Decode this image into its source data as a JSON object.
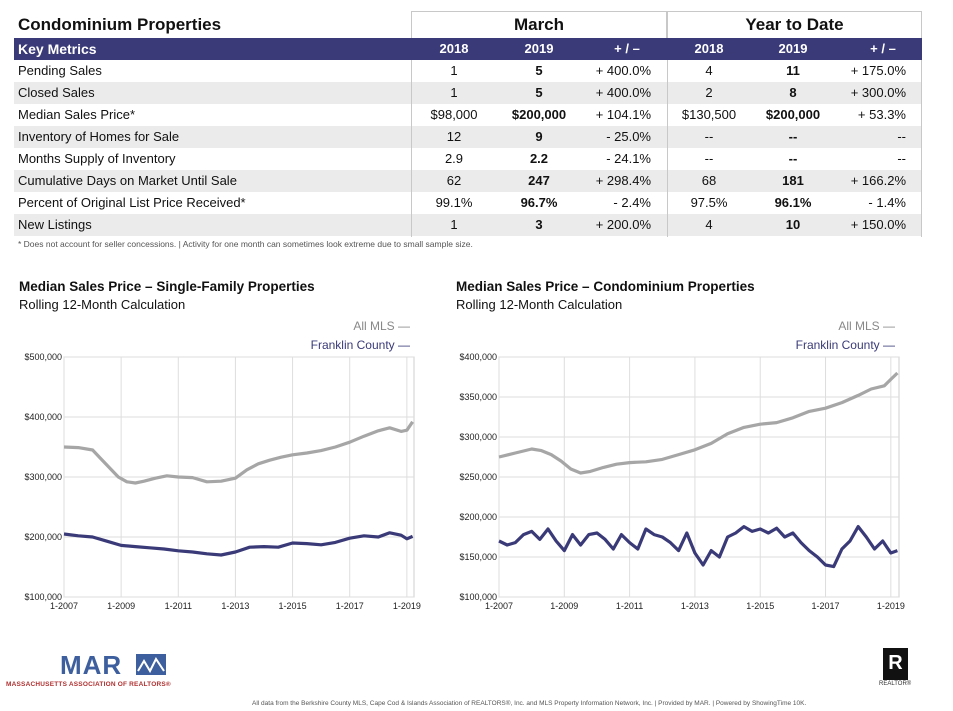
{
  "table": {
    "title": "Condominium Properties",
    "groups": [
      "March",
      "Year to Date"
    ],
    "header_label": "Key Metrics",
    "col_headers": [
      "2018",
      "2019",
      "+ / –",
      "2018",
      "2019",
      "+ / –"
    ],
    "rows": [
      {
        "label": "Pending Sales",
        "m18": "1",
        "m19": "5",
        "mchg": "+ 400.0%",
        "y18": "4",
        "y19": "11",
        "ychg": "+ 175.0%"
      },
      {
        "label": "Closed Sales",
        "m18": "1",
        "m19": "5",
        "mchg": "+ 400.0%",
        "y18": "2",
        "y19": "8",
        "ychg": "+ 300.0%"
      },
      {
        "label": "Median Sales Price*",
        "m18": "$98,000",
        "m19": "$200,000",
        "mchg": "+ 104.1%",
        "y18": "$130,500",
        "y19": "$200,000",
        "ychg": "+ 53.3%"
      },
      {
        "label": "Inventory of Homes for Sale",
        "m18": "12",
        "m19": "9",
        "mchg": "- 25.0%",
        "y18": "--",
        "y19": "--",
        "ychg": "--"
      },
      {
        "label": "Months Supply of Inventory",
        "m18": "2.9",
        "m19": "2.2",
        "mchg": "- 24.1%",
        "y18": "--",
        "y19": "--",
        "ychg": "--"
      },
      {
        "label": "Cumulative Days on Market Until Sale",
        "m18": "62",
        "m19": "247",
        "mchg": "+ 298.4%",
        "y18": "68",
        "y19": "181",
        "ychg": "+ 166.2%"
      },
      {
        "label": "Percent of Original List Price Received*",
        "m18": "99.1%",
        "m19": "96.7%",
        "mchg": "- 2.4%",
        "y18": "97.5%",
        "y19": "96.1%",
        "ychg": "- 1.4%"
      },
      {
        "label": "New Listings",
        "m18": "1",
        "m19": "3",
        "mchg": "+ 200.0%",
        "y18": "4",
        "y19": "10",
        "ychg": "+ 150.0%"
      }
    ],
    "footnote": "* Does not account for seller concessions.  |  Activity for one month can sometimes look extreme due to small sample size."
  },
  "colors": {
    "header_bg": "#3a3a78",
    "all_mls": "#a6a6a6",
    "county": "#3a3a78"
  },
  "chart_data": [
    {
      "type": "line",
      "title": "Median Sales Price – Single-Family Properties",
      "subtitle": "Rolling 12-Month Calculation",
      "legend": [
        "All MLS  —",
        "Franklin County  —"
      ],
      "ylim": [
        100000,
        500000
      ],
      "yticks": [
        100000,
        200000,
        300000,
        400000,
        500000
      ],
      "ytick_labels": [
        "$100,000",
        "$200,000",
        "$300,000",
        "$400,000",
        "$500,000"
      ],
      "xlim": [
        2007.0,
        2019.25
      ],
      "xticks": [
        2007,
        2009,
        2011,
        2013,
        2015,
        2017,
        2019
      ],
      "xtick_labels": [
        "1-2007",
        "1-2009",
        "1-2011",
        "1-2013",
        "1-2015",
        "1-2017",
        "1-2019"
      ],
      "series": [
        {
          "name": "All MLS",
          "x": [
            2007.0,
            2007.5,
            2008.0,
            2008.3,
            2008.6,
            2008.9,
            2009.2,
            2009.5,
            2009.8,
            2010.2,
            2010.6,
            2011.0,
            2011.5,
            2012.0,
            2012.5,
            2013.0,
            2013.4,
            2013.8,
            2014.2,
            2014.6,
            2015.0,
            2015.5,
            2016.0,
            2016.5,
            2017.0,
            2017.5,
            2018.0,
            2018.4,
            2018.8,
            2019.0,
            2019.2
          ],
          "values": [
            350000,
            349000,
            345000,
            330000,
            315000,
            300000,
            292000,
            290000,
            293000,
            298000,
            302000,
            300000,
            299000,
            292000,
            293000,
            298000,
            312000,
            322000,
            328000,
            333000,
            337000,
            340000,
            344000,
            350000,
            358000,
            368000,
            377000,
            382000,
            376000,
            378000,
            392000
          ]
        },
        {
          "name": "Franklin County",
          "x": [
            2007.0,
            2007.5,
            2008.0,
            2008.5,
            2009.0,
            2009.5,
            2010.0,
            2010.5,
            2011.0,
            2011.5,
            2012.0,
            2012.5,
            2013.0,
            2013.5,
            2014.0,
            2014.5,
            2015.0,
            2015.5,
            2016.0,
            2016.5,
            2017.0,
            2017.5,
            2018.0,
            2018.4,
            2018.8,
            2019.0,
            2019.2
          ],
          "values": [
            205000,
            202000,
            200000,
            193000,
            186000,
            184000,
            182000,
            180000,
            177000,
            175000,
            172000,
            170000,
            175000,
            183000,
            184000,
            183000,
            190000,
            189000,
            187000,
            191000,
            198000,
            202000,
            200000,
            207000,
            203000,
            197000,
            201000
          ]
        }
      ]
    },
    {
      "type": "line",
      "title": "Median Sales Price – Condominium Properties",
      "subtitle": "Rolling 12-Month Calculation",
      "legend": [
        "All MLS  —",
        "Franklin County  —"
      ],
      "ylim": [
        100000,
        400000
      ],
      "yticks": [
        100000,
        150000,
        200000,
        250000,
        300000,
        350000,
        400000
      ],
      "ytick_labels": [
        "$100,000",
        "$150,000",
        "$200,000",
        "$250,000",
        "$300,000",
        "$350,000",
        "$400,000"
      ],
      "xlim": [
        2007.0,
        2019.25
      ],
      "xticks": [
        2007,
        2009,
        2011,
        2013,
        2015,
        2017,
        2019
      ],
      "xtick_labels": [
        "1-2007",
        "1-2009",
        "1-2011",
        "1-2013",
        "1-2015",
        "1-2017",
        "1-2019"
      ],
      "series": [
        {
          "name": "All MLS",
          "x": [
            2007.0,
            2007.5,
            2008.0,
            2008.3,
            2008.6,
            2008.9,
            2009.2,
            2009.5,
            2009.8,
            2010.2,
            2010.6,
            2011.0,
            2011.5,
            2012.0,
            2012.5,
            2013.0,
            2013.5,
            2014.0,
            2014.5,
            2015.0,
            2015.5,
            2016.0,
            2016.5,
            2017.0,
            2017.5,
            2018.0,
            2018.4,
            2018.8,
            2019.0,
            2019.2
          ],
          "values": [
            275000,
            280000,
            285000,
            283000,
            278000,
            270000,
            260000,
            255000,
            257000,
            262000,
            266000,
            268000,
            269000,
            272000,
            278000,
            284000,
            292000,
            304000,
            312000,
            316000,
            318000,
            324000,
            332000,
            336000,
            343000,
            352000,
            360000,
            364000,
            372000,
            380000
          ]
        },
        {
          "name": "Franklin County",
          "x": [
            2007.0,
            2007.25,
            2007.5,
            2007.75,
            2008.0,
            2008.25,
            2008.5,
            2008.75,
            2009.0,
            2009.25,
            2009.5,
            2009.75,
            2010.0,
            2010.25,
            2010.5,
            2010.75,
            2011.0,
            2011.25,
            2011.5,
            2011.75,
            2012.0,
            2012.25,
            2012.5,
            2012.75,
            2013.0,
            2013.25,
            2013.5,
            2013.75,
            2014.0,
            2014.25,
            2014.5,
            2014.75,
            2015.0,
            2015.25,
            2015.5,
            2015.75,
            2016.0,
            2016.25,
            2016.5,
            2016.75,
            2017.0,
            2017.25,
            2017.5,
            2017.75,
            2018.0,
            2018.25,
            2018.5,
            2018.75,
            2019.0,
            2019.2
          ],
          "values": [
            170000,
            165000,
            168000,
            178000,
            182000,
            172000,
            185000,
            170000,
            158000,
            178000,
            165000,
            178000,
            180000,
            172000,
            160000,
            178000,
            168000,
            160000,
            185000,
            178000,
            175000,
            168000,
            158000,
            180000,
            155000,
            140000,
            158000,
            150000,
            175000,
            180000,
            188000,
            182000,
            185000,
            180000,
            186000,
            175000,
            180000,
            168000,
            158000,
            150000,
            140000,
            138000,
            160000,
            170000,
            188000,
            175000,
            160000,
            170000,
            155000,
            158000
          ]
        }
      ]
    }
  ],
  "footer": {
    "logo": "MAR",
    "logo_sub": "MASSACHUSETTS ASSOCIATION OF REALTORS®",
    "realtor_mark": "R",
    "realtor_sub": "REALTOR®",
    "credits": "All data from the Berkshire County MLS, Cape Cod & Islands Association of REALTORS®, Inc. and MLS Property Information Network, Inc. | Provided by MAR. | Powered by ShowingTime 10K."
  }
}
